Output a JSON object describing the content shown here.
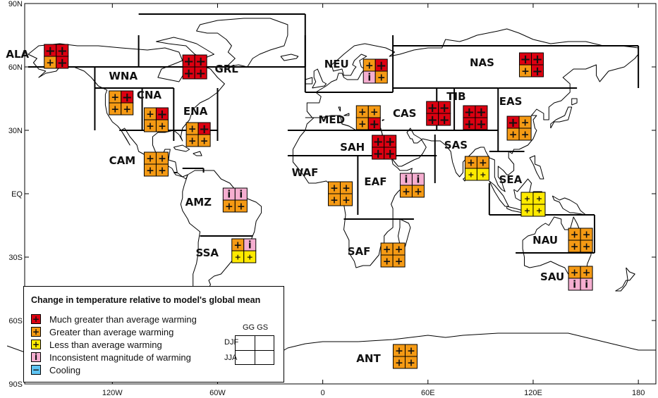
{
  "axes": {
    "lat_labels": [
      "90N",
      "60N",
      "30N",
      "EQ",
      "30S",
      "60S",
      "90S"
    ],
    "lon_labels": [
      "120W",
      "60W",
      "0",
      "60E",
      "120E",
      "180"
    ]
  },
  "colors": {
    "much_greater": "#dd0011",
    "greater": "#f59a14",
    "less": "#ffea00",
    "inconsistent": "#f5aed0",
    "cooling": "#5fc4f2"
  },
  "symbols": {
    "much_greater": "+",
    "greater": "+",
    "less": "+",
    "inconsistent": "i",
    "cooling": "−"
  },
  "regions": [
    {
      "code": "ALA",
      "lon": -152,
      "lat": 65,
      "cells": [
        "much_greater",
        "much_greater",
        "greater",
        "much_greater"
      ]
    },
    {
      "code": "GRL",
      "lon": -73,
      "lat": 60,
      "cells": [
        "much_greater",
        "much_greater",
        "much_greater",
        "much_greater"
      ]
    },
    {
      "code": "WNA",
      "lon": -115,
      "lat": 43,
      "cells": [
        "greater",
        "much_greater",
        "greater",
        "greater"
      ]
    },
    {
      "code": "CNA",
      "lon": -95,
      "lat": 35,
      "cells": [
        "greater",
        "much_greater",
        "greater",
        "greater"
      ]
    },
    {
      "code": "ENA",
      "lon": -71,
      "lat": 28,
      "cells": [
        "greater",
        "much_greater",
        "greater",
        "greater"
      ]
    },
    {
      "code": "CAM",
      "lon": -95,
      "lat": 14,
      "cells": [
        "greater",
        "greater",
        "greater",
        "greater"
      ]
    },
    {
      "code": "AMZ",
      "lon": -50,
      "lat": -3,
      "cells": [
        "inconsistent",
        "inconsistent",
        "greater",
        "greater"
      ]
    },
    {
      "code": "SSA",
      "lon": -45,
      "lat": -27,
      "cells": [
        "greater",
        "inconsistent",
        "less",
        "less"
      ]
    },
    {
      "code": "NEU",
      "lon": 30,
      "lat": 58,
      "cells": [
        "greater",
        "much_greater",
        "inconsistent",
        "greater"
      ]
    },
    {
      "code": "MED",
      "lon": 26,
      "lat": 36,
      "cells": [
        "greater",
        "greater",
        "greater",
        "much_greater"
      ]
    },
    {
      "code": "SAH",
      "lon": 35,
      "lat": 22,
      "cells": [
        "much_greater",
        "much_greater",
        "much_greater",
        "much_greater"
      ]
    },
    {
      "code": "WAF",
      "lon": 10,
      "lat": 0,
      "cells": [
        "greater",
        "greater",
        "greater",
        "greater"
      ]
    },
    {
      "code": "EAF",
      "lon": 51,
      "lat": 4,
      "cells": [
        "inconsistent",
        "inconsistent",
        "greater",
        "greater"
      ]
    },
    {
      "code": "SAF",
      "lon": 40,
      "lat": -29,
      "cells": [
        "greater",
        "greater",
        "greater",
        "greater"
      ]
    },
    {
      "code": "CAS",
      "lon": 66,
      "lat": 38,
      "cells": [
        "much_greater",
        "much_greater",
        "much_greater",
        "much_greater"
      ]
    },
    {
      "code": "TIB",
      "lon": 87,
      "lat": 36,
      "cells": [
        "much_greater",
        "much_greater",
        "much_greater",
        "much_greater"
      ]
    },
    {
      "code": "NAS",
      "lon": 119,
      "lat": 61,
      "cells": [
        "much_greater",
        "much_greater",
        "greater",
        "much_greater"
      ]
    },
    {
      "code": "EAS",
      "lon": 112,
      "lat": 31,
      "cells": [
        "much_greater",
        "greater",
        "greater",
        "greater"
      ]
    },
    {
      "code": "SAS",
      "lon": 88,
      "lat": 12,
      "cells": [
        "greater",
        "greater",
        "less",
        "less"
      ]
    },
    {
      "code": "SEA",
      "lon": 120,
      "lat": -5,
      "cells": [
        "less",
        "less",
        "less",
        "less"
      ]
    },
    {
      "code": "NAU",
      "lon": 147,
      "lat": -22,
      "cells": [
        "greater",
        "greater",
        "greater",
        "greater"
      ]
    },
    {
      "code": "SAU",
      "lon": 147,
      "lat": -40,
      "cells": [
        "greater",
        "greater",
        "inconsistent",
        "inconsistent"
      ]
    },
    {
      "code": "ANT",
      "lon": 47,
      "lat": -77,
      "cells": [
        "greater",
        "greater",
        "greater",
        "greater"
      ]
    }
  ],
  "legend": {
    "title": "Change in temperature relative to model's global mean",
    "items": [
      {
        "key": "much_greater",
        "label": "Much greater than average warming"
      },
      {
        "key": "greater",
        "label": "Greater than average warming"
      },
      {
        "key": "less",
        "label": "Less than average warming"
      },
      {
        "key": "inconsistent",
        "label": "Inconsistent magnitude of warming"
      },
      {
        "key": "cooling",
        "label": "Cooling"
      }
    ],
    "key_cols": "GG GS",
    "key_row1": "DJF",
    "key_row2": "JJA"
  }
}
